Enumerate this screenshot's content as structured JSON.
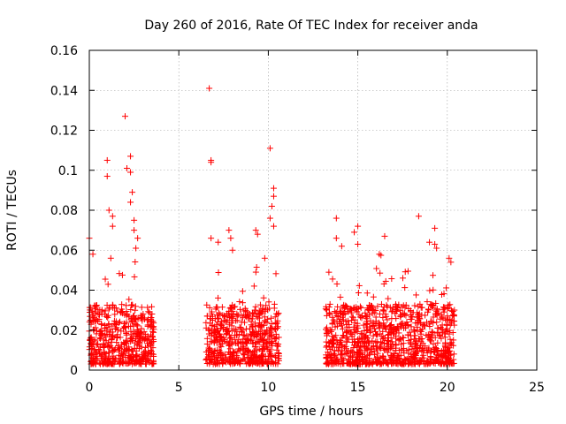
{
  "chart_data": {
    "type": "scatter",
    "title": "Day 260 of 2016, Rate Of TEC Index for receiver anda",
    "xlabel": "GPS time / hours",
    "ylabel": "ROTI / TECUs",
    "xlim": [
      0,
      25
    ],
    "ylim": [
      0,
      0.16
    ],
    "xticks": [
      0,
      5,
      10,
      15,
      20,
      25
    ],
    "xtick_labels": [
      "0",
      "5",
      "10",
      "15",
      "20",
      "25"
    ],
    "yticks": [
      0,
      0.02,
      0.04,
      0.06,
      0.08,
      0.1,
      0.12,
      0.14,
      0.16
    ],
    "ytick_labels": [
      "0",
      "0.02",
      "0.04",
      "0.06",
      "0.08",
      "0.1",
      "0.12",
      "0.14",
      "0.16"
    ],
    "grid": true,
    "marker": "plus",
    "color": "#ff0000",
    "clusters": [
      {
        "name": "segment-1",
        "x_range": [
          0.0,
          3.6
        ],
        "typical_max": 0.03
      },
      {
        "name": "segment-2",
        "x_range": [
          6.5,
          10.6
        ],
        "typical_max": 0.03
      },
      {
        "name": "segment-3",
        "x_range": [
          13.2,
          20.4
        ],
        "typical_max": 0.03
      }
    ],
    "notable_points": [
      {
        "x": 0.0,
        "y": 0.066
      },
      {
        "x": 0.2,
        "y": 0.058
      },
      {
        "x": 1.0,
        "y": 0.105
      },
      {
        "x": 1.0,
        "y": 0.097
      },
      {
        "x": 1.1,
        "y": 0.08
      },
      {
        "x": 1.3,
        "y": 0.077
      },
      {
        "x": 1.3,
        "y": 0.072
      },
      {
        "x": 1.2,
        "y": 0.056
      },
      {
        "x": 2.0,
        "y": 0.127
      },
      {
        "x": 2.1,
        "y": 0.101
      },
      {
        "x": 2.3,
        "y": 0.107
      },
      {
        "x": 2.3,
        "y": 0.099
      },
      {
        "x": 2.4,
        "y": 0.089
      },
      {
        "x": 2.3,
        "y": 0.084
      },
      {
        "x": 2.5,
        "y": 0.075
      },
      {
        "x": 2.5,
        "y": 0.07
      },
      {
        "x": 2.7,
        "y": 0.066
      },
      {
        "x": 2.6,
        "y": 0.061
      },
      {
        "x": 6.7,
        "y": 0.141
      },
      {
        "x": 6.8,
        "y": 0.105
      },
      {
        "x": 6.8,
        "y": 0.104
      },
      {
        "x": 6.8,
        "y": 0.066
      },
      {
        "x": 7.2,
        "y": 0.064
      },
      {
        "x": 7.8,
        "y": 0.07
      },
      {
        "x": 7.9,
        "y": 0.066
      },
      {
        "x": 8.0,
        "y": 0.06
      },
      {
        "x": 9.3,
        "y": 0.07
      },
      {
        "x": 9.4,
        "y": 0.068
      },
      {
        "x": 10.1,
        "y": 0.111
      },
      {
        "x": 10.3,
        "y": 0.091
      },
      {
        "x": 10.3,
        "y": 0.087
      },
      {
        "x": 10.2,
        "y": 0.082
      },
      {
        "x": 10.1,
        "y": 0.076
      },
      {
        "x": 10.3,
        "y": 0.072
      },
      {
        "x": 9.8,
        "y": 0.056
      },
      {
        "x": 13.8,
        "y": 0.076
      },
      {
        "x": 13.8,
        "y": 0.066
      },
      {
        "x": 14.1,
        "y": 0.062
      },
      {
        "x": 14.8,
        "y": 0.069
      },
      {
        "x": 15.0,
        "y": 0.072
      },
      {
        "x": 15.0,
        "y": 0.063
      },
      {
        "x": 16.5,
        "y": 0.067
      },
      {
        "x": 16.2,
        "y": 0.058
      },
      {
        "x": 18.4,
        "y": 0.077
      },
      {
        "x": 19.3,
        "y": 0.071
      },
      {
        "x": 19.0,
        "y": 0.064
      },
      {
        "x": 19.3,
        "y": 0.063
      },
      {
        "x": 19.4,
        "y": 0.061
      },
      {
        "x": 20.1,
        "y": 0.056
      },
      {
        "x": 20.2,
        "y": 0.054
      }
    ]
  }
}
